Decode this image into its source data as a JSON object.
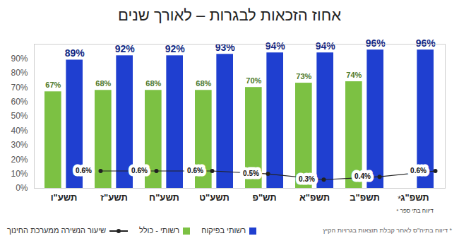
{
  "chart_data": {
    "type": "bar",
    "title": "אחוז הזכאות לבגרות – לאורך שנים",
    "categories": [
      "תשע\"ו",
      "תשע\"ז",
      "תשע\"ח",
      "תשע\"ט",
      "תש\"פ",
      "תשפ\"א",
      "תשפ\"ב",
      "תשפ\"ג"
    ],
    "series": [
      {
        "name": "רשותי - כולל",
        "color": "#7cc143",
        "values": [
          67,
          68,
          68,
          68,
          70,
          73,
          74,
          null
        ],
        "value_labels": [
          "67%",
          "68%",
          "68%",
          "68%",
          "70%",
          "73%",
          "74%",
          null
        ]
      },
      {
        "name": "רשותי בפיקוח",
        "color": "#1f3fd0",
        "values": [
          89,
          92,
          92,
          93,
          94,
          94,
          96,
          96
        ],
        "value_labels": [
          "89%",
          "92%",
          "92%",
          "93%",
          "94%",
          "94%",
          "96%",
          "96%"
        ]
      },
      {
        "name": "שיעור הנשירה ממערכת החינוך",
        "type": "line",
        "axis": "y2",
        "color": "#222222",
        "marker": "circle",
        "values": [
          null,
          0.6,
          0.6,
          0.6,
          0.5,
          0.3,
          0.4,
          0.6
        ],
        "value_labels": [
          null,
          "0.6%",
          "0.6%",
          "0.6%",
          "0.5%",
          "0.3%",
          "0.4%",
          "0.6%"
        ]
      }
    ],
    "ylim": [
      0,
      100
    ],
    "yticks": [
      {
        "value": 0,
        "label": "0%"
      },
      {
        "value": 10,
        "label": "10%"
      },
      {
        "value": 20,
        "label": "20%"
      },
      {
        "value": 30,
        "label": "30%"
      },
      {
        "value": 40,
        "label": "40%"
      },
      {
        "value": 50,
        "label": "50%"
      },
      {
        "value": 60,
        "label": "60%"
      },
      {
        "value": 70,
        "label": "70%"
      },
      {
        "value": 80,
        "label": "80%"
      },
      {
        "value": 90,
        "label": "90%"
      }
    ],
    "y2lim": [
      0,
      5
    ],
    "data_labels": true,
    "grid": false,
    "legend": "bottom",
    "annotations": [
      {
        "text": "*",
        "category": "תשפ\"ג"
      },
      {
        "text": "* דיווח בתי ספר",
        "category": "תשפ\"ג"
      },
      {
        "text": "* דיווח בתיה\"ס לאחר קבלת תוצאות בגרויות הקיץ"
      }
    ]
  }
}
